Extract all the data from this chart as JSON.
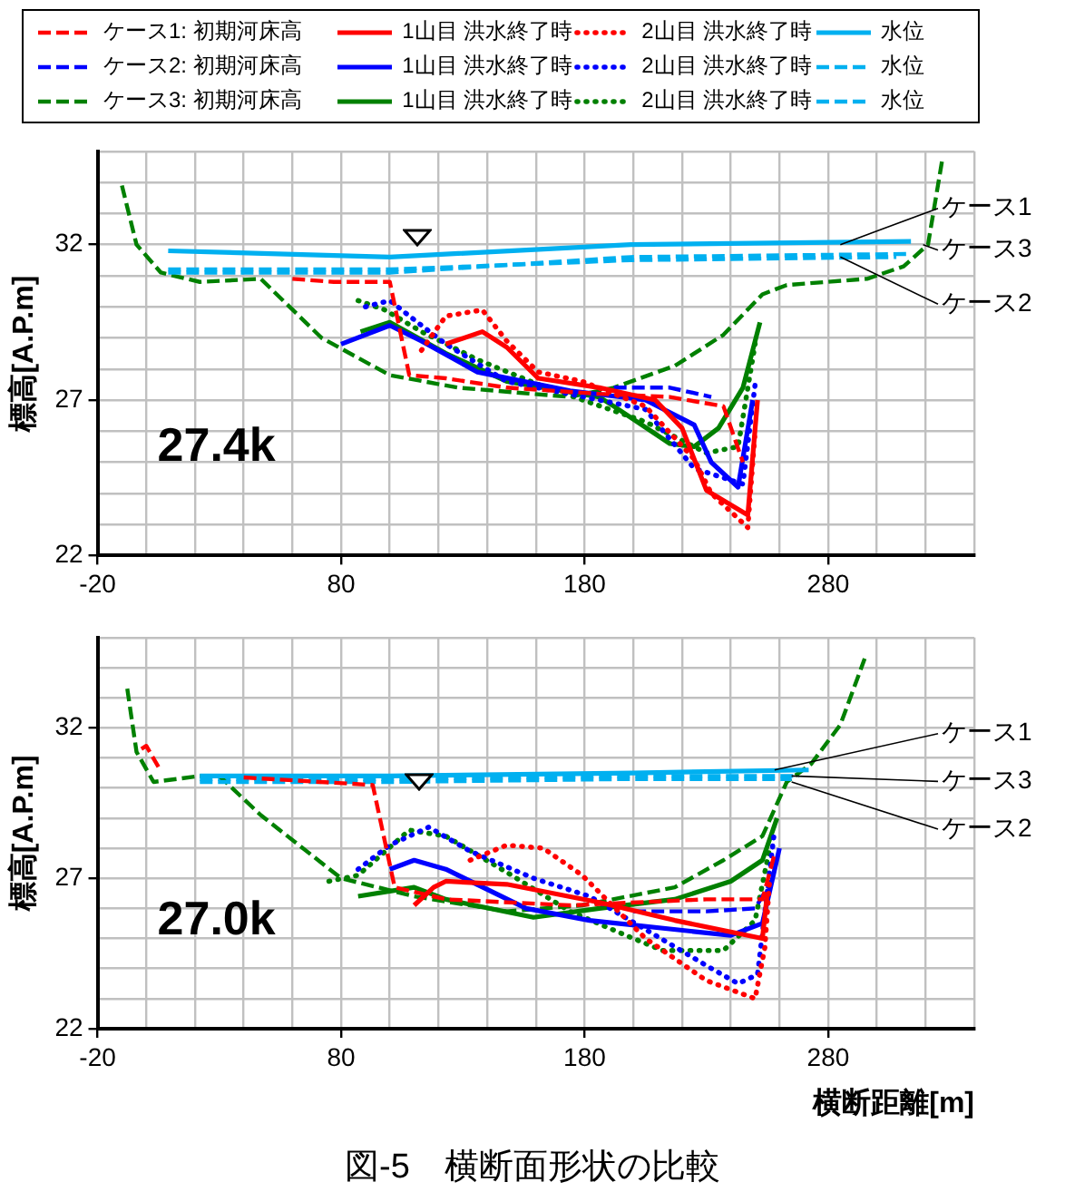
{
  "chart_data": [
    {
      "type": "line",
      "marker": "none",
      "grid": true,
      "legend": "top",
      "ylabel": "標高[A.P.m]",
      "xlim": [
        -20,
        340
      ],
      "ylim": [
        22,
        35
      ],
      "xticks": [
        -20,
        {
          "value": 0,
          "label": null
        },
        {
          "value": 20,
          "label": null
        },
        {
          "value": 40,
          "label": null
        },
        {
          "value": 60,
          "label": null
        },
        80,
        {
          "value": 100,
          "label": null
        },
        {
          "value": 120,
          "label": null
        },
        {
          "value": 140,
          "label": null
        },
        {
          "value": 160,
          "label": null
        },
        180,
        {
          "value": 200,
          "label": null
        },
        {
          "value": 220,
          "label": null
        },
        {
          "value": 240,
          "label": null
        },
        {
          "value": 260,
          "label": null
        },
        280,
        {
          "value": 300,
          "label": null
        },
        {
          "value": 320,
          "label": null
        },
        {
          "value": 340,
          "label": null
        }
      ],
      "yticks": [
        22,
        {
          "value": 23,
          "label": null
        },
        {
          "value": 24,
          "label": null
        },
        {
          "value": 25,
          "label": null
        },
        {
          "value": 26,
          "label": null
        },
        27,
        {
          "value": 28,
          "label": null
        },
        {
          "value": 29,
          "label": null
        },
        {
          "value": 30,
          "label": null
        },
        {
          "value": 31,
          "label": null
        },
        32,
        {
          "value": 33,
          "label": null
        },
        {
          "value": 34,
          "label": null
        },
        {
          "value": 35,
          "label": null
        }
      ],
      "annotations": [
        {
          "text": "ケース1",
          "x": 285,
          "y": 32.0
        },
        {
          "text": "ケース3",
          "x": 319,
          "y": 32.0
        },
        {
          "text": "ケース2",
          "x": 285,
          "y": 31.6
        },
        "27.4k"
      ],
      "series": [
        {
          "name": "ケース1: 初期河床高",
          "color": "#ff0000",
          "line_style": "dashed",
          "x": [
            60,
            77,
            100,
            108,
            123,
            148,
            186,
            215,
            237,
            245
          ],
          "values": [
            30.9,
            30.8,
            30.8,
            27.8,
            27.7,
            27.4,
            27.2,
            27.1,
            26.8,
            25.0
          ]
        },
        {
          "name": "1山目 洪水終了時",
          "color": "#ff0000",
          "line_style": "solid",
          "x": [
            123,
            138,
            148,
            161,
            186,
            209,
            220,
            230,
            247,
            251
          ],
          "values": [
            28.8,
            29.2,
            28.7,
            27.7,
            27.4,
            27.0,
            26.1,
            24.1,
            23.3,
            27.0
          ]
        },
        {
          "name": "2山目 洪水終了時",
          "color": "#ff0000",
          "line_style": "dotted",
          "x": [
            113,
            123,
            138,
            148,
            161,
            179,
            205,
            225,
            232,
            247,
            250
          ],
          "values": [
            28.6,
            29.7,
            29.9,
            28.9,
            27.9,
            27.6,
            26.8,
            25.1,
            24.0,
            22.9,
            26.0
          ]
        },
        {
          "name": "水位",
          "color": "#00b0f0",
          "line_style": "solid",
          "x": [
            9,
            100,
            199,
            314
          ],
          "values": [
            31.8,
            31.6,
            32.0,
            32.1
          ]
        },
        {
          "name": "ケース2: 初期河床高",
          "color": "#0000ff",
          "line_style": "dashed",
          "x": [
            192,
            215,
            232
          ],
          "values": [
            27.4,
            27.4,
            27.1
          ]
        },
        {
          "name": "1山目 洪水終了時",
          "color": "#0000ff",
          "line_style": "solid",
          "x": [
            80,
            100,
            113,
            136,
            174,
            205,
            225,
            232,
            243,
            249
          ],
          "values": [
            28.8,
            29.4,
            28.9,
            27.9,
            27.3,
            27.0,
            26.2,
            25.0,
            24.2,
            27.0
          ]
        },
        {
          "name": "2山目 洪水終了時",
          "color": "#0000ff",
          "line_style": "dotted",
          "x": [
            90,
            100,
            113,
            123,
            148,
            186,
            205,
            225,
            245,
            250
          ],
          "values": [
            30.0,
            30.2,
            29.4,
            28.8,
            27.6,
            27.0,
            26.7,
            24.8,
            24.3,
            27.5
          ]
        },
        {
          "name": "水位",
          "color": "#00b0f0",
          "line_style": "dashed",
          "x": [
            9,
            100,
            199,
            314
          ],
          "values": [
            31.1,
            31.1,
            31.6,
            31.7
          ]
        },
        {
          "name": "ケース3: 初期河床高",
          "color": "#008000",
          "line_style": "dashed",
          "x": [
            -10,
            -4,
            6,
            22,
            47,
            72,
            100,
            128,
            174,
            192,
            217,
            237,
            253,
            263,
            296,
            311,
            321,
            327
          ],
          "values": [
            33.9,
            32.0,
            31.1,
            30.8,
            30.9,
            29.0,
            27.8,
            27.4,
            27.1,
            27.4,
            28.1,
            29.1,
            30.4,
            30.7,
            30.9,
            31.3,
            32.0,
            34.8
          ]
        },
        {
          "name": "1山目 洪水終了時",
          "color": "#008000",
          "line_style": "solid",
          "x": [
            88,
            100,
            123,
            148,
            186,
            192,
            215,
            225,
            235,
            245,
            252
          ],
          "values": [
            29.2,
            29.5,
            28.5,
            27.6,
            27.1,
            26.8,
            25.6,
            25.5,
            26.1,
            27.4,
            29.5
          ]
        },
        {
          "name": "2山目 洪水終了時",
          "color": "#008000",
          "line_style": "dotted",
          "x": [
            87,
            98,
            113,
            136,
            161,
            205,
            230,
            243,
            250
          ],
          "values": [
            30.2,
            29.9,
            29.2,
            28.3,
            27.5,
            26.3,
            25.3,
            25.5,
            28.8
          ]
        },
        {
          "name": "水位",
          "color": "#00b0f0",
          "line_style": "dashed",
          "x": [
            9,
            100,
            199,
            308
          ],
          "values": [
            31.2,
            31.2,
            31.5,
            31.6
          ]
        }
      ]
    },
    {
      "type": "line",
      "marker": "none",
      "grid": true,
      "ylabel": "標高[A.P.m]",
      "xlabel": "横断距離[m]",
      "xlim": [
        -20,
        340
      ],
      "ylim": [
        22,
        35
      ],
      "xticks": [
        -20,
        {
          "value": 0,
          "label": null
        },
        {
          "value": 20,
          "label": null
        },
        {
          "value": 40,
          "label": null
        },
        {
          "value": 60,
          "label": null
        },
        80,
        {
          "value": 100,
          "label": null
        },
        {
          "value": 120,
          "label": null
        },
        {
          "value": 140,
          "label": null
        },
        {
          "value": 160,
          "label": null
        },
        180,
        {
          "value": 200,
          "label": null
        },
        {
          "value": 220,
          "label": null
        },
        {
          "value": 240,
          "label": null
        },
        {
          "value": 260,
          "label": null
        },
        280,
        {
          "value": 300,
          "label": null
        },
        {
          "value": 320,
          "label": null
        },
        {
          "value": 340,
          "label": null
        }
      ],
      "yticks": [
        22,
        {
          "value": 23,
          "label": null
        },
        {
          "value": 24,
          "label": null
        },
        {
          "value": 25,
          "label": null
        },
        {
          "value": 26,
          "label": null
        },
        27,
        {
          "value": 28,
          "label": null
        },
        {
          "value": 29,
          "label": null
        },
        {
          "value": 30,
          "label": null
        },
        {
          "value": 31,
          "label": null
        },
        32,
        {
          "value": 33,
          "label": null
        },
        {
          "value": 34,
          "label": null
        },
        {
          "value": 35,
          "label": null
        }
      ],
      "annotations": [
        {
          "text": "ケース1",
          "x": 258,
          "y": 30.6
        },
        {
          "text": "ケース3",
          "x": 265,
          "y": 30.4
        },
        {
          "text": "ケース2",
          "x": 265,
          "y": 30.2
        },
        "27.0k",
        "図-5　横断面形状の比較"
      ],
      "series": [
        {
          "color": "#ff0000",
          "line_style": "dashed",
          "x": [
            -2,
            0,
            5,
            10,
            40,
            93,
            102,
            123,
            174,
            230,
            253,
            258
          ],
          "values": [
            31.3,
            31.4,
            30.7,
            null,
            30.35,
            30.1,
            26.7,
            26.3,
            26.1,
            26.3,
            26.3,
            27.8
          ]
        },
        {
          "color": "#ff0000",
          "line_style": "solid",
          "x": [
            110,
            118,
            123,
            148,
            186,
            217,
            253,
            255
          ],
          "values": [
            26.1,
            26.7,
            26.9,
            26.8,
            26.2,
            25.6,
            25.0,
            26.5
          ]
        },
        {
          "color": "#ff0000",
          "line_style": "dotted",
          "x": [
            133,
            148,
            163,
            179,
            205,
            230,
            250,
            254,
            256
          ],
          "values": [
            27.6,
            28.1,
            28.0,
            27.1,
            25.0,
            23.6,
            23.0,
            24.7,
            27.0
          ]
        },
        {
          "color": "#00b0f0",
          "line_style": "solid",
          "x": [
            22,
            100,
            200,
            272
          ],
          "values": [
            30.4,
            30.4,
            30.5,
            30.6
          ]
        },
        {
          "color": "#0000ff",
          "line_style": "dashed",
          "x": [
            200,
            230,
            250,
            256
          ],
          "values": [
            25.9,
            25.9,
            26.0,
            26.8
          ]
        },
        {
          "color": "#0000ff",
          "line_style": "solid",
          "x": [
            100,
            110,
            123,
            156,
            182,
            240,
            253,
            260
          ],
          "values": [
            27.3,
            27.6,
            27.3,
            26.0,
            25.6,
            25.1,
            25.5,
            28.0
          ]
        },
        {
          "color": "#0000ff",
          "line_style": "dotted",
          "x": [
            87,
            100,
            116,
            133,
            159,
            182,
            205,
            230,
            243,
            251,
            258
          ],
          "values": [
            27.3,
            28.1,
            28.7,
            27.9,
            27.0,
            26.4,
            25.3,
            24.1,
            23.5,
            23.8,
            28.6
          ]
        },
        {
          "color": "#00b0f0",
          "line_style": "dashed",
          "x": [
            22,
            100,
            200,
            265
          ],
          "values": [
            30.2,
            30.2,
            30.3,
            30.3
          ]
        },
        {
          "color": "#008000",
          "line_style": "dashed",
          "x": [
            -7.8,
            -4,
            3,
            22,
            30,
            47,
            80,
            110,
            148,
            179,
            217,
            237,
            253,
            263,
            273,
            285,
            295
          ],
          "values": [
            33.3,
            31.2,
            30.2,
            30.4,
            30.4,
            29.1,
            27.0,
            26.4,
            25.9,
            26.1,
            26.7,
            27.6,
            28.4,
            30.2,
            30.8,
            32.1,
            34.3
          ]
        },
        {
          "color": "#008000",
          "line_style": "solid",
          "x": [
            87,
            110,
            123,
            159,
            186,
            217,
            240,
            253,
            259
          ],
          "values": [
            26.4,
            26.7,
            26.3,
            25.7,
            26.0,
            26.3,
            26.9,
            27.6,
            29.0
          ]
        },
        {
          "color": "#008000",
          "line_style": "dotted",
          "x": [
            75,
            87,
            108,
            123,
            148,
            174,
            197,
            212,
            237,
            250,
            256
          ],
          "values": [
            26.9,
            27.1,
            28.6,
            28.4,
            27.2,
            25.9,
            25.1,
            24.6,
            24.6,
            25.6,
            28.0
          ]
        },
        {
          "color": "#00b0f0",
          "line_style": "dashed",
          "x": [
            22,
            100,
            200,
            268
          ],
          "values": [
            30.3,
            30.3,
            30.4,
            30.4
          ]
        }
      ]
    }
  ]
}
